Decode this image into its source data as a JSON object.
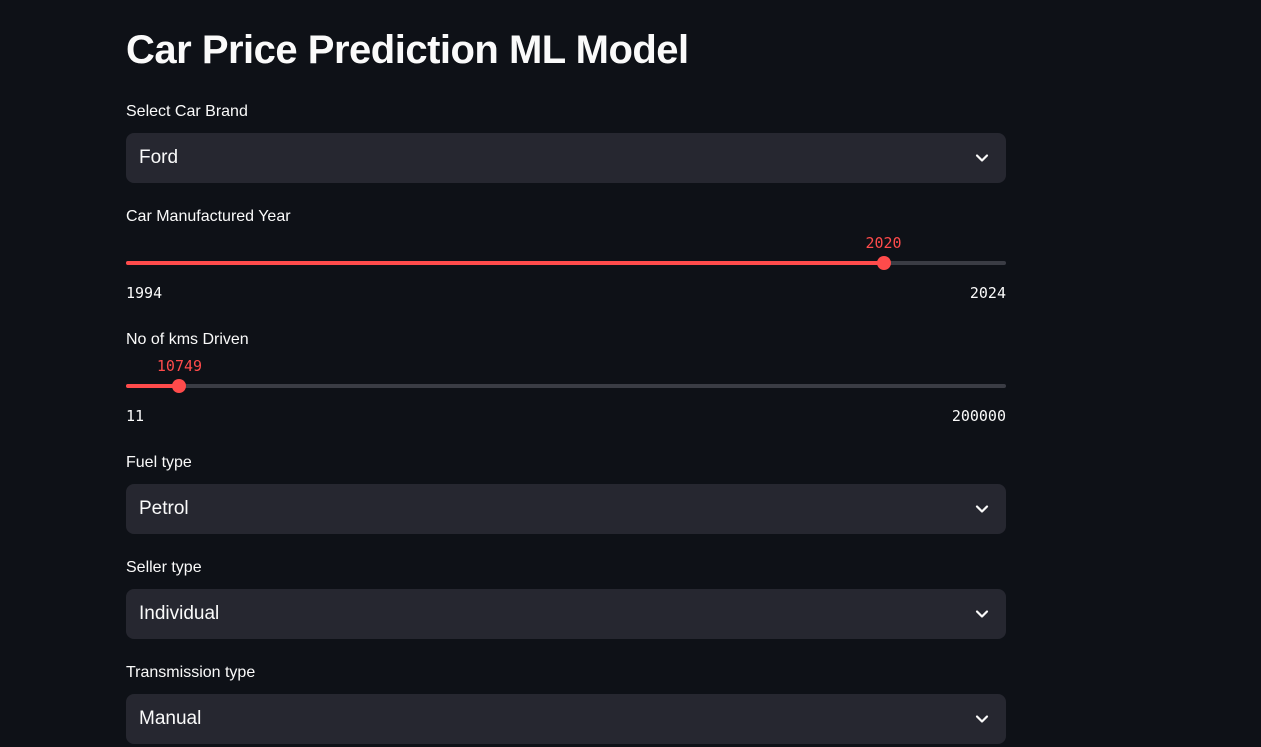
{
  "title": "Car Price Prediction ML Model",
  "brand": {
    "label": "Select Car Brand",
    "value": "Ford",
    "icon": "chevron-down-icon"
  },
  "year": {
    "label": "Car Manufactured Year",
    "value": 2020,
    "value_text": "2020",
    "min": 1994,
    "min_text": "1994",
    "max": 2024,
    "max_text": "2024"
  },
  "kms": {
    "label": "No of kms Driven",
    "value": 10749,
    "value_text": "10749",
    "min": 11,
    "min_text": "11",
    "max": 200000,
    "max_text": "200000"
  },
  "fuel": {
    "label": "Fuel type",
    "value": "Petrol",
    "icon": "chevron-down-icon"
  },
  "seller": {
    "label": "Seller type",
    "value": "Individual",
    "icon": "chevron-down-icon"
  },
  "transmission": {
    "label": "Transmission type",
    "value": "Manual",
    "icon": "chevron-down-icon"
  },
  "colors": {
    "background": "#0e1117",
    "input_background": "#262730",
    "accent": "#ff4b4b",
    "text": "#fafafa"
  }
}
